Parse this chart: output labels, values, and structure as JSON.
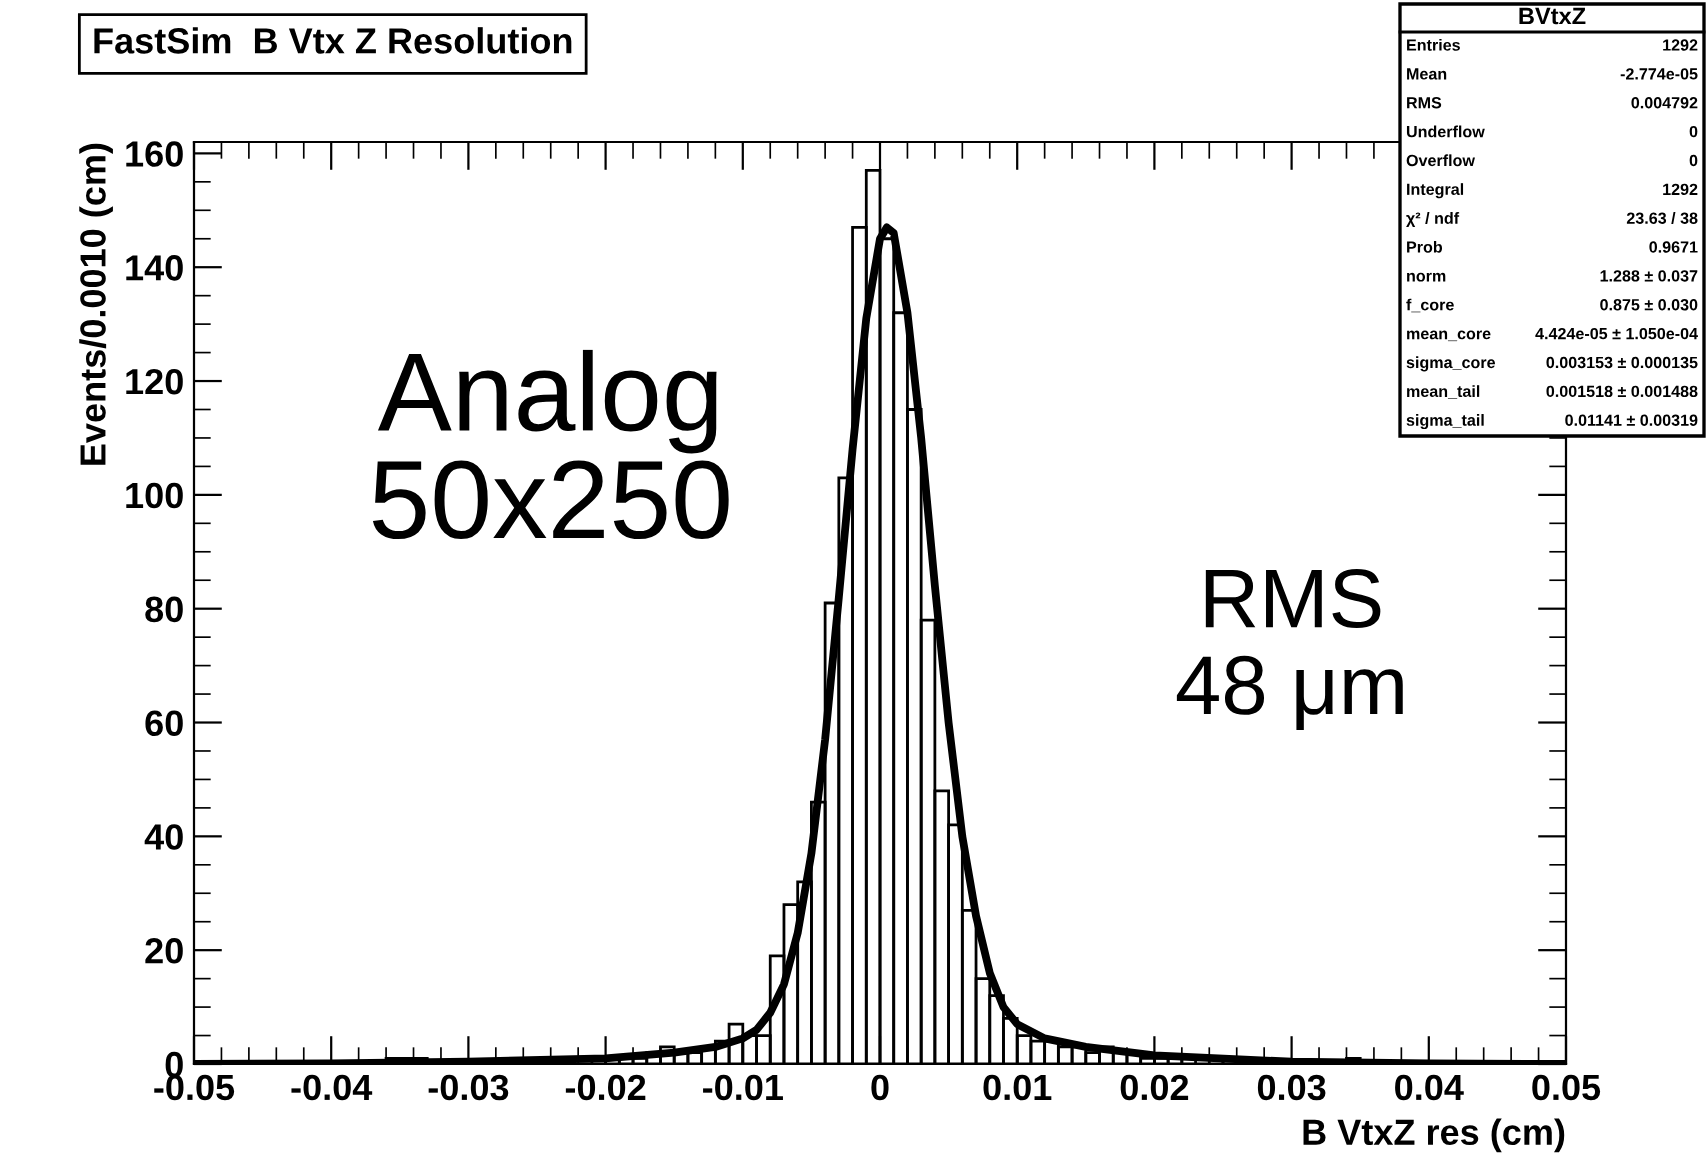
{
  "chart_data": {
    "type": "histogram",
    "title": "FastSim  B Vtx Z Resolution",
    "xlabel": "B VtxZ res (cm)",
    "ylabel": "Events/0.0010 (cm)",
    "xlim": [
      -0.05,
      0.05
    ],
    "ylim": [
      0,
      162
    ],
    "xticks": [
      -0.05,
      -0.04,
      -0.03,
      -0.02,
      -0.01,
      0,
      0.01,
      0.02,
      0.03,
      0.04,
      0.05
    ],
    "yticks": [
      0,
      20,
      40,
      60,
      80,
      100,
      120,
      140,
      160
    ],
    "grid": false,
    "legend": false,
    "series": [
      {
        "color": "#000000",
        "bins": [
          -0.05,
          -0.049,
          -0.048,
          -0.047,
          -0.046,
          -0.045,
          -0.044,
          -0.043,
          -0.042,
          -0.041,
          -0.04,
          -0.039,
          -0.038,
          -0.037,
          -0.036,
          -0.035,
          -0.034,
          -0.033,
          -0.032,
          -0.031,
          -0.03,
          -0.029,
          -0.028,
          -0.027,
          -0.026,
          -0.025,
          -0.024,
          -0.023,
          -0.022,
          -0.021,
          -0.02,
          -0.019,
          -0.018,
          -0.017,
          -0.016,
          -0.015,
          -0.014,
          -0.013,
          -0.012,
          -0.011,
          -0.01,
          -0.009,
          -0.008,
          -0.007,
          -0.006,
          -0.005,
          -0.004,
          -0.003,
          -0.002,
          -0.001,
          0,
          0.001,
          0.002,
          0.003,
          0.004,
          0.005,
          0.006,
          0.007,
          0.008,
          0.009,
          0.01,
          0.011,
          0.012,
          0.013,
          0.014,
          0.015,
          0.016,
          0.017,
          0.018,
          0.019,
          0.02,
          0.021,
          0.022,
          0.023,
          0.024,
          0.025,
          0.026,
          0.027,
          0.028,
          0.029,
          0.03,
          0.031,
          0.032,
          0.033,
          0.034,
          0.035,
          0.036,
          0.037,
          0.038,
          0.039,
          0.04,
          0.041,
          0.042,
          0.043,
          0.044,
          0.045,
          0.046,
          0.047,
          0.048,
          0.049,
          0.05
        ],
        "values": [
          0,
          0,
          0,
          0,
          0,
          0,
          0,
          0,
          0,
          0,
          0,
          0,
          0,
          0,
          1,
          1,
          1,
          0,
          0,
          0,
          0,
          0,
          0,
          0,
          0,
          null,
          null,
          null,
          0,
          1,
          1,
          1,
          1,
          2,
          3,
          2,
          2,
          3,
          4,
          7,
          5,
          5,
          19,
          28,
          32,
          46,
          81,
          103,
          147,
          157,
          145,
          132,
          115,
          78,
          48,
          42,
          27,
          15,
          12,
          8,
          5,
          4,
          4,
          3,
          3,
          2,
          3,
          2,
          2,
          1,
          1,
          1,
          1,
          0,
          1,
          1,
          0,
          null,
          0,
          0,
          0,
          0,
          0,
          0,
          1,
          0,
          0,
          0,
          0,
          0,
          0,
          0,
          0,
          0,
          0,
          0,
          0,
          0,
          0,
          0
        ]
      },
      {
        "type": "line",
        "color": "#000000",
        "x": [
          -0.05,
          -0.04,
          -0.03,
          -0.02,
          -0.015,
          -0.012,
          -0.01,
          -0.009,
          -0.008,
          -0.007,
          -0.006,
          -0.005,
          -0.004,
          -0.003,
          -0.002,
          -0.001,
          0,
          0.0005,
          0.001,
          0.002,
          0.003,
          0.004,
          0.005,
          0.006,
          0.007,
          0.008,
          0.009,
          0.01,
          0.012,
          0.015,
          0.02,
          0.03,
          0.04,
          0.05
        ],
        "values": [
          0,
          0.1,
          0.4,
          1,
          2,
          3,
          4.5,
          6,
          9,
          14,
          23,
          37,
          57,
          82,
          108,
          131,
          145,
          147,
          146,
          132,
          110,
          84,
          60,
          40,
          26,
          16,
          10,
          7,
          4.5,
          3,
          1.5,
          0.4,
          0.1,
          0
        ]
      }
    ],
    "annotations": [
      "Analog\n50x250",
      "RMS\n48 μm",
      "BVtxZ",
      "Entries",
      "1292",
      "Mean",
      "-2.774e-05",
      "RMS",
      "0.004792",
      "Underflow",
      "0",
      "Overflow",
      "0",
      "Integral",
      "1292",
      "χ² / ndf",
      "23.63 / 38",
      "Prob",
      "0.9671",
      "norm",
      "1.288 ± 0.037",
      "f_core",
      "0.875 ± 0.030",
      "mean_core",
      "4.424e-05 ± 1.050e-04",
      "sigma_core",
      "0.003153 ± 0.000135",
      "mean_tail",
      "0.001518 ± 0.001488",
      "sigma_tail",
      "0.01141 ± 0.00319"
    ]
  }
}
